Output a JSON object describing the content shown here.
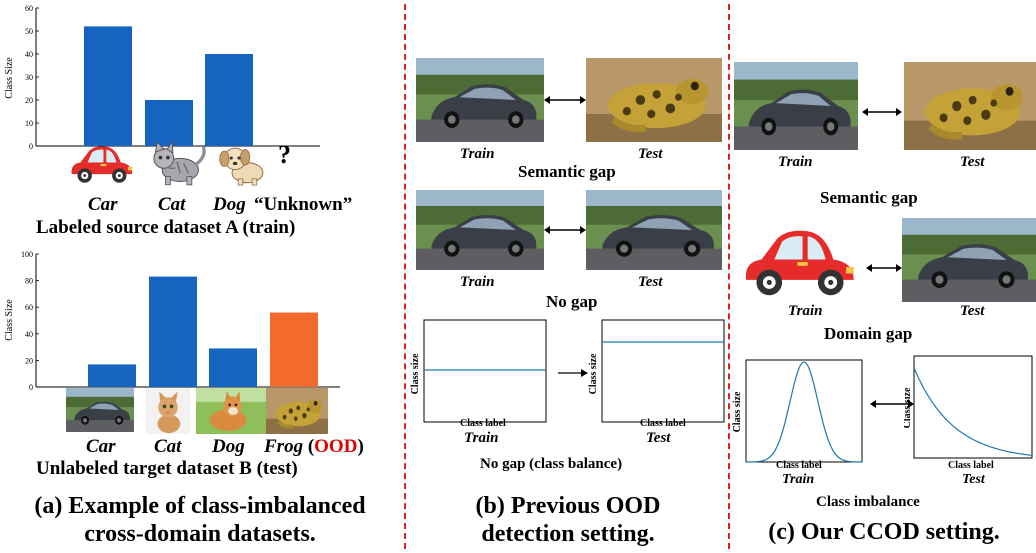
{
  "panel_a": {
    "chart_top": {
      "ylabel": "Class Size",
      "yticks": [
        "0",
        "10",
        "20",
        "30",
        "40",
        "50",
        "60"
      ],
      "ylim": [
        0,
        60
      ],
      "categories": [
        "Car",
        "Cat",
        "Dog",
        "Unknown"
      ],
      "values": [
        52,
        20,
        40,
        0
      ],
      "bar_color": "#1565c0"
    },
    "top_labels": {
      "car": "Car",
      "cat": "Cat",
      "dog": "Dog",
      "unknown": "“Unknown”",
      "question": "?"
    },
    "top_title": "Labeled source dataset A (train)",
    "chart_bottom": {
      "ylabel": "Class Size",
      "yticks": [
        "0",
        "20",
        "40",
        "60",
        "80",
        "100"
      ],
      "ylim": [
        0,
        100
      ],
      "categories": [
        "Car",
        "Cat",
        "Dog",
        "Frog"
      ],
      "values": [
        17,
        83,
        29,
        56
      ],
      "bar_colors": [
        "#1565c0",
        "#1565c0",
        "#1565c0",
        "#f26b2d"
      ]
    },
    "bottom_labels": {
      "car": "Car",
      "cat": "Cat",
      "dog": "Dog",
      "frog": "Frog",
      "ood_open": "(",
      "ood": "OOD",
      "ood_close": ")"
    },
    "bottom_title": "Unlabeled target dataset B (test)",
    "caption_line1": "(a) Example of class-imbalanced",
    "caption_line2": "cross-domain datasets."
  },
  "panel_b": {
    "row1": {
      "left": "Train",
      "right": "Test",
      "title": "Semantic gap"
    },
    "row2": {
      "left": "Train",
      "right": "Test",
      "title": "No gap"
    },
    "row3": {
      "ylabel": "Class size",
      "xlabel": "Class label",
      "left": "Train",
      "right": "Test",
      "title": "No gap (class balance)"
    },
    "caption_line1": "(b) Previous OOD",
    "caption_line2": "detection setting."
  },
  "panel_c": {
    "row1": {
      "left": "Train",
      "right": "Test",
      "title": "Semantic gap"
    },
    "row2": {
      "left": "Train",
      "right": "Test",
      "title": "Domain gap"
    },
    "row3": {
      "ylabel": "Class size",
      "xlabel": "Class label",
      "left": "Train",
      "right": "Test",
      "title": "Class imbalance"
    },
    "caption": "(c) Our CCOD setting."
  },
  "colors": {
    "divider": "#e02020",
    "ood": "#e00000",
    "line": "#1f77b4"
  }
}
